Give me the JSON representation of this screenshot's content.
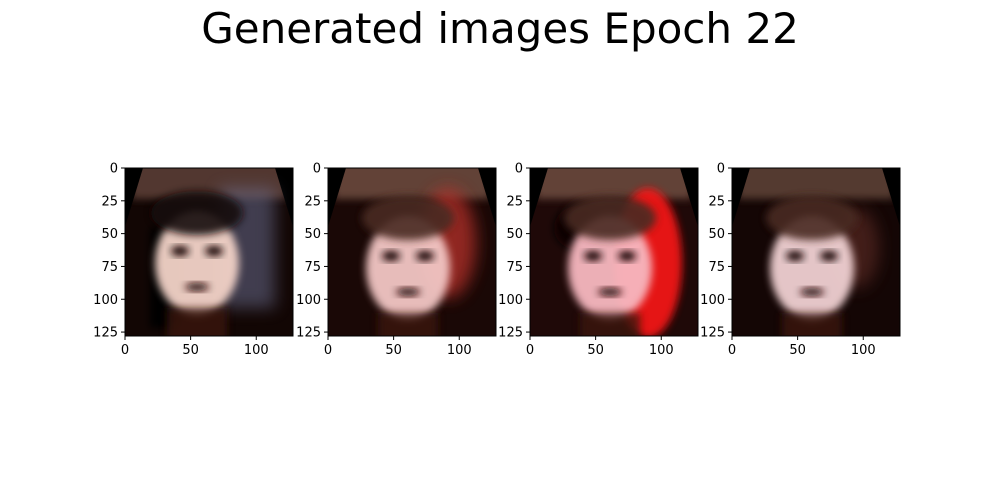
{
  "figure": {
    "title": "Generated images Epoch 22"
  },
  "chart_data": [
    {
      "type": "image",
      "title": "",
      "xlabel": "",
      "ylabel": "",
      "xlim": [
        0,
        128
      ],
      "ylim": [
        128,
        0
      ],
      "xticks": [
        0,
        50,
        100
      ],
      "yticks": [
        0,
        25,
        50,
        75,
        100,
        125
      ],
      "content": "generated face, dark hair, pale skin, dark background with blue-grey speckle",
      "colors": {
        "bg": "#120604",
        "top": "#5a3d36",
        "skin": "#f3d3c8",
        "accent": "#6f7599"
      }
    },
    {
      "type": "image",
      "title": "",
      "xlabel": "",
      "ylabel": "",
      "xlim": [
        0,
        128
      ],
      "ylim": [
        128,
        0
      ],
      "xticks": [
        0,
        50,
        100
      ],
      "yticks": [
        0,
        25,
        50,
        75,
        100,
        125
      ],
      "content": "generated face, blurry pinkish skin, reddish hair on right, brown top band",
      "colors": {
        "bg": "#1a0806",
        "top": "#6a4a3c",
        "skin": "#f2c6c4",
        "accent": "#b8312a"
      }
    },
    {
      "type": "image",
      "title": "",
      "xlabel": "",
      "ylabel": "",
      "xlim": [
        0,
        128
      ],
      "ylim": [
        128,
        0
      ],
      "xticks": [
        0,
        50,
        100
      ],
      "yticks": [
        0,
        25,
        50,
        75,
        100,
        125
      ],
      "content": "generated face, pink skin, strong red region on right, dark hair patches",
      "colors": {
        "bg": "#1f0908",
        "top": "#6a4a3c",
        "skin": "#f7b8c0",
        "accent": "#f01818"
      }
    },
    {
      "type": "image",
      "title": "",
      "xlabel": "",
      "ylabel": "",
      "xlim": [
        0,
        128
      ],
      "ylim": [
        128,
        0
      ],
      "xticks": [
        0,
        50,
        100
      ],
      "yticks": [
        0,
        25,
        50,
        75,
        100,
        125
      ],
      "content": "generated face, pale pink skin, dark eyes, brown top band, dark surroundings",
      "colors": {
        "bg": "#140605",
        "top": "#5c4036",
        "skin": "#f0d0d2",
        "accent": "#7a3a30"
      }
    }
  ]
}
